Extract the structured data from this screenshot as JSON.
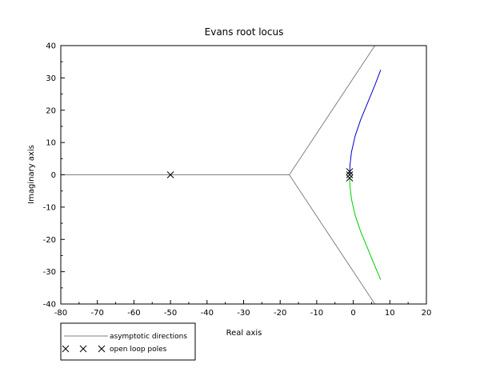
{
  "chart_data": {
    "type": "line",
    "title": "Evans root locus",
    "xlabel": "Real axis",
    "ylabel": "Imaginary axis",
    "xlim": [
      -80,
      20
    ],
    "ylim": [
      -40,
      40
    ],
    "xticks": [
      -80,
      -70,
      -60,
      -50,
      -40,
      -30,
      -20,
      -10,
      0,
      10,
      20
    ],
    "yticks": [
      -40,
      -30,
      -20,
      -10,
      0,
      10,
      20,
      30,
      40
    ],
    "grid": false,
    "legend_position": "bottom-left",
    "legend": [
      {
        "label": "asymptotic directions",
        "marker": "line"
      },
      {
        "label": "open loop poles",
        "marker": "x"
      }
    ],
    "series": [
      {
        "color": "#000000",
        "kind": "locus",
        "points": [
          [
            -67.5,
            0
          ],
          [
            -50,
            0
          ]
        ]
      },
      {
        "color": "#0000cc",
        "kind": "locus",
        "points": [
          [
            -1,
            0
          ],
          [
            -0.9,
            3
          ],
          [
            -0.5,
            7
          ],
          [
            0.5,
            12
          ],
          [
            2,
            17
          ],
          [
            4,
            22.5
          ],
          [
            6,
            28
          ],
          [
            7.5,
            32.5
          ]
        ]
      },
      {
        "color": "#00cc00",
        "kind": "locus",
        "points": [
          [
            -1,
            -1
          ],
          [
            -0.9,
            -3.5
          ],
          [
            -0.5,
            -7.5
          ],
          [
            0.5,
            -12.5
          ],
          [
            2,
            -17.5
          ],
          [
            4,
            -23
          ],
          [
            6,
            -28.5
          ],
          [
            7.5,
            -32.5
          ]
        ]
      },
      {
        "color": "#808080",
        "kind": "asymptote",
        "points": [
          [
            -80,
            0
          ],
          [
            -17.5,
            0
          ]
        ]
      },
      {
        "color": "#808080",
        "kind": "asymptote",
        "points": [
          [
            -17.5,
            0
          ],
          [
            5.9,
            40
          ]
        ]
      },
      {
        "color": "#808080",
        "kind": "asymptote",
        "points": [
          [
            -17.5,
            0
          ],
          [
            5.9,
            -40
          ]
        ]
      }
    ],
    "poles": [
      [
        -50,
        0
      ],
      [
        -1,
        1
      ],
      [
        -1,
        0
      ],
      [
        -1,
        -1
      ]
    ]
  }
}
